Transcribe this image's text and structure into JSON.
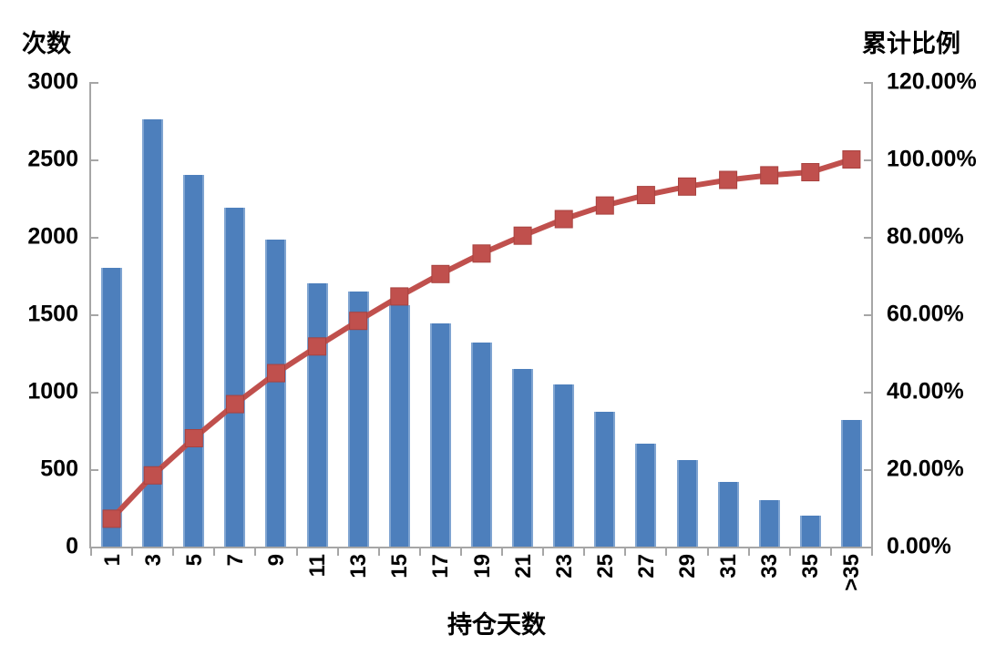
{
  "chart_data": {
    "type": "bar",
    "subtype": "pareto-combo-bar-line",
    "categories": [
      "1",
      "3",
      "5",
      "7",
      "9",
      "11",
      "13",
      "15",
      "17",
      "19",
      "21",
      "23",
      "25",
      "27",
      "29",
      "31",
      "33",
      "35",
      ">35"
    ],
    "series": [
      {
        "name": "次数",
        "type": "bar",
        "axis": "left",
        "color": "#4D7FBC",
        "edge_color": "#7FA4D1",
        "values": [
          1800,
          2760,
          2400,
          2190,
          1980,
          1700,
          1650,
          1560,
          1440,
          1320,
          1150,
          1050,
          870,
          665,
          560,
          420,
          300,
          200,
          815
        ]
      },
      {
        "name": "累计比例",
        "type": "line",
        "axis": "right",
        "color": "#C0504D",
        "marker": "square",
        "values_percent": [
          7.2,
          18.4,
          28.0,
          36.8,
          44.8,
          51.7,
          58.3,
          64.6,
          70.4,
          75.7,
          80.3,
          84.6,
          88.1,
          90.8,
          93.0,
          94.7,
          95.9,
          96.7,
          100.0
        ]
      }
    ],
    "left_axis": {
      "title": "次数",
      "min": 0,
      "max": 3000,
      "step": 500,
      "tick_labels": [
        "3000",
        "2500",
        "2000",
        "1500",
        "1000",
        "500",
        "0"
      ]
    },
    "right_axis": {
      "title": "累计比例",
      "min_percent": 0,
      "max_percent": 120,
      "step_percent": 20,
      "tick_labels": [
        "120.00%",
        "100.00%",
        "80.00%",
        "60.00%",
        "40.00%",
        "20.00%",
        "0.00%"
      ]
    },
    "x_axis": {
      "title": "持仓天数"
    },
    "grid": false,
    "legend": "none",
    "colors": {
      "bar": "#4D7FBC",
      "bar_edge": "#7FA4D1",
      "line": "#C0504D",
      "axis": "#A6A6A6",
      "text": "#000000",
      "background": "#FFFFFF"
    }
  }
}
